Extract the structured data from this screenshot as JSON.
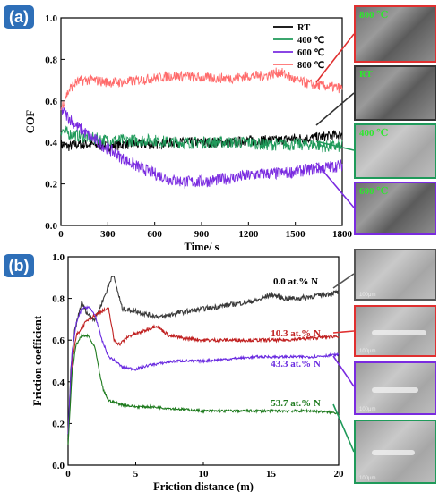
{
  "panels": {
    "a_label": "(a)",
    "b_label": "(b)",
    "a_color": "#2e6fb8",
    "b_color": "#2e6fb8"
  },
  "chart_data": [
    {
      "type": "line",
      "xlabel": "Time/ s",
      "ylabel": "COF",
      "xlim": [
        0,
        1800
      ],
      "ylim": [
        0,
        1.0
      ],
      "xticks": [
        "0",
        "300",
        "600",
        "900",
        "1200",
        "1500",
        "1800"
      ],
      "yticks": [
        "0.0",
        "0.2",
        "0.4",
        "0.6",
        "0.8",
        "1.0"
      ],
      "legend_position": "top-right",
      "series": [
        {
          "name": "RT",
          "color": "#000000",
          "x": [
            0,
            50,
            100,
            200,
            300,
            400,
            500,
            600,
            700,
            800,
            900,
            1000,
            1100,
            1200,
            1300,
            1400,
            1500,
            1600,
            1700,
            1800
          ],
          "values": [
            0.39,
            0.38,
            0.39,
            0.39,
            0.38,
            0.39,
            0.39,
            0.39,
            0.4,
            0.4,
            0.4,
            0.4,
            0.4,
            0.41,
            0.41,
            0.41,
            0.42,
            0.42,
            0.43,
            0.44
          ]
        },
        {
          "name": "400 ℃",
          "color": "#1f9a5a",
          "x": [
            0,
            30,
            60,
            120,
            200,
            300,
            400,
            500,
            600,
            700,
            800,
            900,
            1000,
            1100,
            1200,
            1300,
            1400,
            1500,
            1600,
            1700,
            1800
          ],
          "values": [
            0.46,
            0.45,
            0.44,
            0.43,
            0.42,
            0.41,
            0.41,
            0.41,
            0.41,
            0.4,
            0.4,
            0.4,
            0.4,
            0.4,
            0.4,
            0.39,
            0.39,
            0.39,
            0.39,
            0.38,
            0.38
          ]
        },
        {
          "name": "600 ℃",
          "color": "#7a2be0",
          "x": [
            0,
            50,
            100,
            200,
            300,
            400,
            500,
            600,
            700,
            800,
            900,
            1000,
            1100,
            1200,
            1300,
            1400,
            1500,
            1600,
            1700,
            1800
          ],
          "values": [
            0.56,
            0.52,
            0.48,
            0.42,
            0.37,
            0.32,
            0.28,
            0.25,
            0.22,
            0.21,
            0.21,
            0.22,
            0.23,
            0.24,
            0.25,
            0.25,
            0.26,
            0.27,
            0.28,
            0.29
          ]
        },
        {
          "name": "800 ℃",
          "color": "#ff6b6b",
          "x": [
            0,
            30,
            60,
            100,
            150,
            200,
            300,
            400,
            500,
            600,
            700,
            800,
            900,
            1000,
            1100,
            1200,
            1300,
            1400,
            1500,
            1600,
            1700,
            1800
          ],
          "values": [
            0.56,
            0.62,
            0.66,
            0.69,
            0.7,
            0.7,
            0.69,
            0.69,
            0.7,
            0.71,
            0.72,
            0.72,
            0.71,
            0.71,
            0.71,
            0.72,
            0.72,
            0.74,
            0.7,
            0.68,
            0.67,
            0.66
          ]
        }
      ],
      "insets": [
        {
          "label": "800 ℃",
          "border": "#e03030"
        },
        {
          "label": "RT",
          "border": "#333333"
        },
        {
          "label": "400 ℃",
          "border": "#1f9a5a"
        },
        {
          "label": "600 ℃",
          "border": "#7a2be0"
        }
      ]
    },
    {
      "type": "line",
      "xlabel": "Friction distance (m)",
      "ylabel": "Friction coefficient",
      "xlim": [
        0,
        20
      ],
      "ylim": [
        0,
        1.0
      ],
      "xticks": [
        "0",
        "5",
        "10",
        "15",
        "20"
      ],
      "yticks": [
        "0.0",
        "0.2",
        "0.4",
        "0.6",
        "0.8",
        "1.0"
      ],
      "series": [
        {
          "name": "0.0 at.% N",
          "color": "#3a3a3a",
          "x": [
            0,
            0.2,
            0.5,
            1.0,
            1.5,
            2.0,
            2.5,
            3.0,
            3.3,
            3.6,
            4.0,
            5.0,
            6.0,
            7.0,
            8.0,
            9.0,
            10.0,
            11.0,
            12.0,
            13.0,
            14.0,
            15.0,
            16.0,
            17.0,
            18.0,
            19.0,
            20.0
          ],
          "values": [
            0.12,
            0.45,
            0.65,
            0.78,
            0.72,
            0.7,
            0.78,
            0.86,
            0.92,
            0.85,
            0.75,
            0.74,
            0.72,
            0.71,
            0.73,
            0.74,
            0.75,
            0.76,
            0.77,
            0.78,
            0.79,
            0.82,
            0.8,
            0.8,
            0.81,
            0.82,
            0.83
          ]
        },
        {
          "name": "10.3 at.% N",
          "color": "#c02020",
          "x": [
            0,
            0.3,
            0.6,
            1.0,
            1.5,
            2.0,
            2.5,
            3.0,
            3.4,
            3.8,
            4.5,
            5.5,
            6.5,
            7.5,
            8.5,
            10.0,
            12.0,
            14.0,
            16.0,
            18.0,
            20.0
          ],
          "values": [
            0.15,
            0.5,
            0.62,
            0.66,
            0.7,
            0.72,
            0.74,
            0.75,
            0.6,
            0.58,
            0.62,
            0.64,
            0.67,
            0.62,
            0.61,
            0.6,
            0.6,
            0.6,
            0.6,
            0.61,
            0.62
          ]
        },
        {
          "name": "43.3 at.% N",
          "color": "#6a2be0",
          "x": [
            0,
            0.3,
            0.6,
            1.0,
            1.5,
            2.0,
            2.5,
            3.0,
            3.5,
            4.0,
            5.0,
            6.0,
            7.0,
            8.0,
            10.0,
            12.0,
            14.0,
            16.0,
            18.0,
            20.0
          ],
          "values": [
            0.15,
            0.55,
            0.68,
            0.75,
            0.76,
            0.72,
            0.6,
            0.52,
            0.5,
            0.47,
            0.46,
            0.48,
            0.49,
            0.5,
            0.5,
            0.51,
            0.52,
            0.52,
            0.52,
            0.53
          ]
        },
        {
          "name": "53.7 at.% N",
          "color": "#1d7a1d",
          "x": [
            0,
            0.3,
            0.6,
            1.0,
            1.5,
            2.0,
            2.3,
            2.6,
            3.0,
            3.5,
            4.0,
            5.0,
            6.0,
            8.0,
            10.0,
            12.0,
            14.0,
            16.0,
            18.0,
            20.0
          ],
          "values": [
            0.1,
            0.45,
            0.58,
            0.62,
            0.62,
            0.56,
            0.45,
            0.36,
            0.31,
            0.3,
            0.29,
            0.28,
            0.28,
            0.27,
            0.26,
            0.26,
            0.26,
            0.26,
            0.26,
            0.25
          ]
        }
      ],
      "insets": [
        {
          "scale": "100μm",
          "border": "#555555"
        },
        {
          "scale": "100μm",
          "border": "#e03030"
        },
        {
          "scale": "100μm",
          "border": "#7a2be0"
        },
        {
          "scale": "100μm",
          "border": "#1f9a5a"
        }
      ]
    }
  ]
}
